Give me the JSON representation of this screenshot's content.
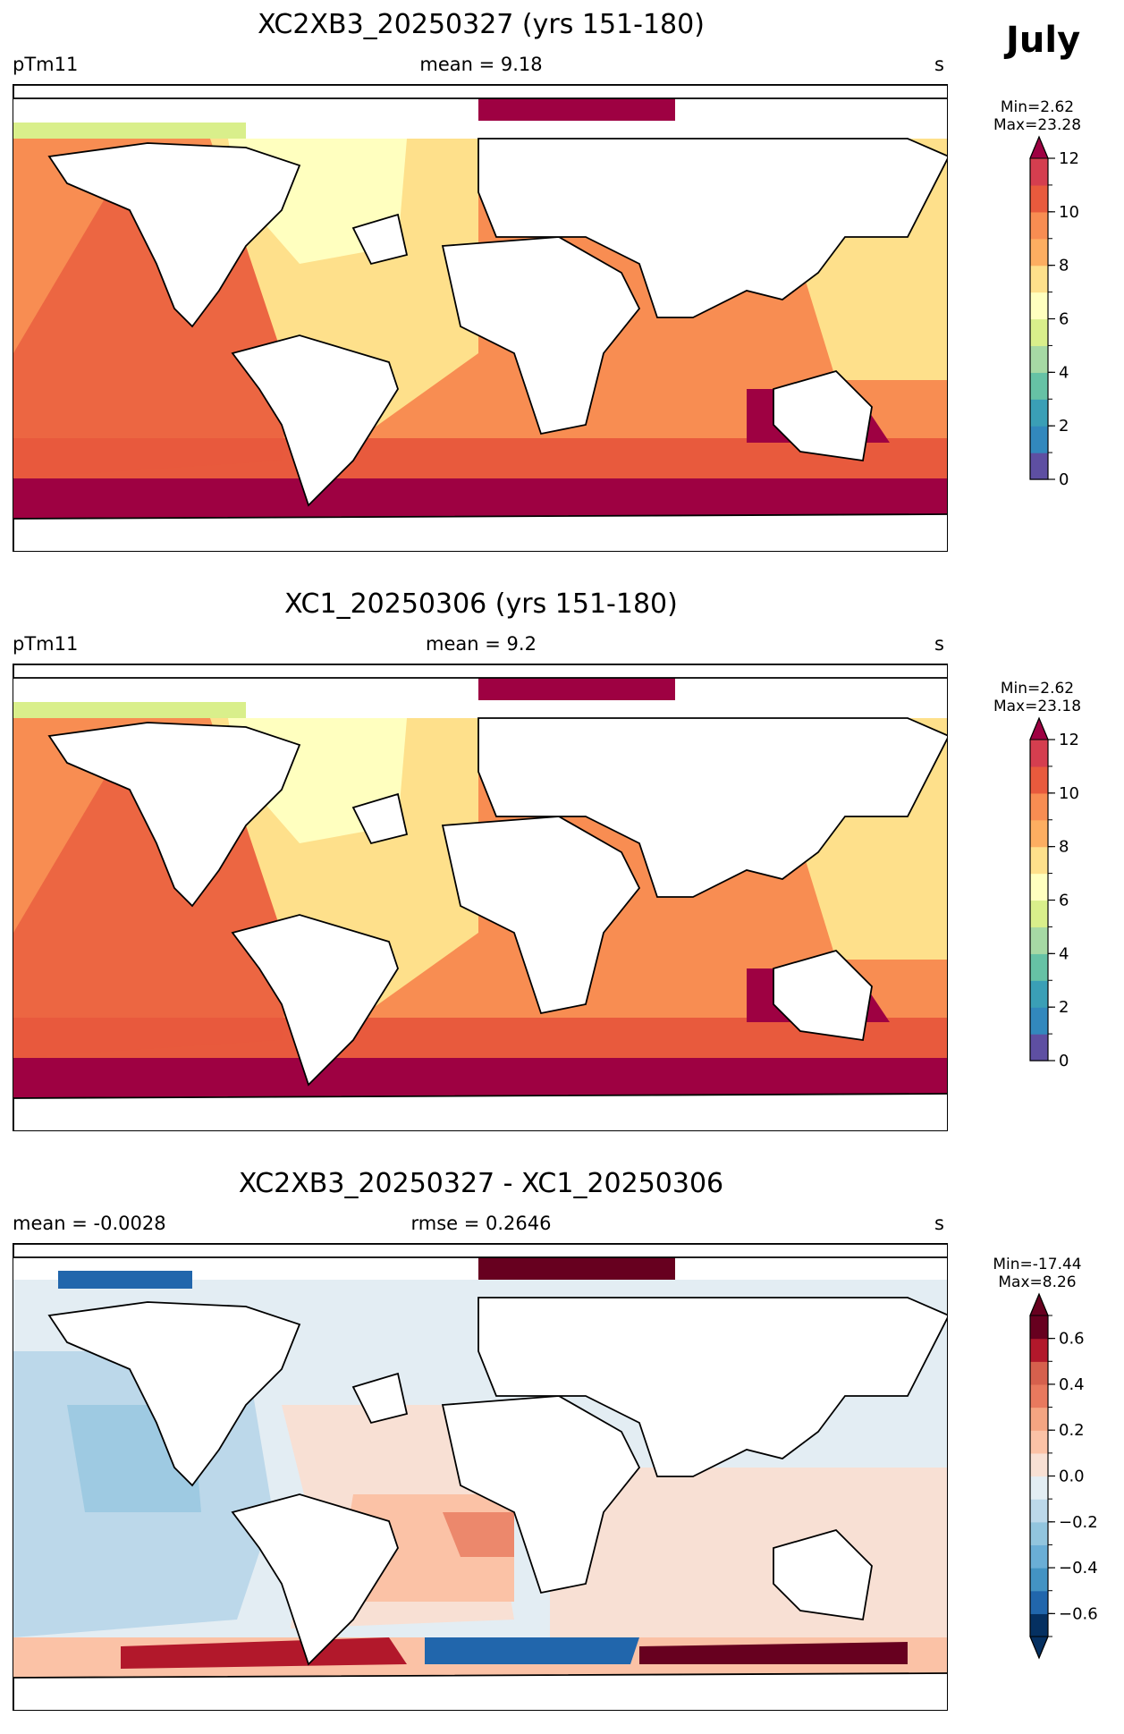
{
  "figure": {
    "month": "July"
  },
  "panels": [
    {
      "title": "XC2XB3_20250327 (yrs 151-180)",
      "left_label": "pTm11",
      "center_label": "mean = 9.18",
      "right_label": "s",
      "cb_min": "Min=2.62",
      "cb_max": "Max=23.28",
      "colorbar": {
        "ticks": [
          "0",
          "2",
          "4",
          "6",
          "8",
          "10",
          "12"
        ],
        "tick_values": [
          0,
          2,
          4,
          6,
          8,
          10,
          12
        ],
        "levels": [
          0,
          1,
          2,
          3,
          4,
          5,
          6,
          7,
          8,
          9,
          10,
          11,
          12
        ],
        "colors": [
          "#5e4fa2",
          "#3288bd",
          "#3a9fb6",
          "#66c2a5",
          "#a6d9a4",
          "#d9ef8b",
          "#ffffbf",
          "#fee08b",
          "#fdae61",
          "#f88d52",
          "#e85a3d",
          "#d53e4f",
          "#9e0142"
        ],
        "extend": "max"
      }
    },
    {
      "title": "XC1_20250306 (yrs 151-180)",
      "left_label": "pTm11",
      "center_label": "mean = 9.2",
      "right_label": "s",
      "cb_min": "Min=2.62",
      "cb_max": "Max=23.18",
      "colorbar": {
        "ticks": [
          "0",
          "2",
          "4",
          "6",
          "8",
          "10",
          "12"
        ],
        "tick_values": [
          0,
          2,
          4,
          6,
          8,
          10,
          12
        ],
        "levels": [
          0,
          1,
          2,
          3,
          4,
          5,
          6,
          7,
          8,
          9,
          10,
          11,
          12
        ],
        "colors": [
          "#5e4fa2",
          "#3288bd",
          "#3a9fb6",
          "#66c2a5",
          "#a6d9a4",
          "#d9ef8b",
          "#ffffbf",
          "#fee08b",
          "#fdae61",
          "#f88d52",
          "#e85a3d",
          "#d53e4f",
          "#9e0142"
        ],
        "extend": "max"
      }
    },
    {
      "title": "XC2XB3_20250327 - XC1_20250306",
      "left_label": "mean = -0.0028",
      "center_label": "rmse = 0.2646",
      "right_label": "s",
      "cb_min": "Min=-17.44",
      "cb_max": "Max=8.26",
      "colorbar": {
        "ticks": [
          "0.6",
          "0.4",
          "0.2",
          "0.0",
          "−0.2",
          "−0.4",
          "−0.6"
        ],
        "tick_values": [
          0.6,
          0.4,
          0.2,
          0.0,
          -0.2,
          -0.4,
          -0.6
        ],
        "levels": [
          -0.7,
          -0.6,
          -0.5,
          -0.4,
          -0.3,
          -0.2,
          -0.1,
          0.0,
          0.1,
          0.2,
          0.3,
          0.4,
          0.5,
          0.6,
          0.7
        ],
        "colors": [
          "#053061",
          "#2166ac",
          "#4393c3",
          "#6aaed6",
          "#92c5de",
          "#bcd8ea",
          "#e3edf3",
          "#f8e0d4",
          "#fbc2a6",
          "#f4a582",
          "#e8795e",
          "#d6604d",
          "#b2182b",
          "#67001f"
        ],
        "extend": "both"
      }
    }
  ],
  "chart_data": [
    {
      "type": "heatmap",
      "title": "XC2XB3_20250327 (yrs 151-180)",
      "variable": "pTm11",
      "units": "s",
      "mean": 9.18,
      "min": 2.62,
      "max": 23.28,
      "colorbar_range": [
        0,
        12
      ]
    },
    {
      "type": "heatmap",
      "title": "XC1_20250306 (yrs 151-180)",
      "variable": "pTm11",
      "units": "s",
      "mean": 9.2,
      "min": 2.62,
      "max": 23.18,
      "colorbar_range": [
        0,
        12
      ]
    },
    {
      "type": "heatmap",
      "title": "XC2XB3_20250327 - XC1_20250306",
      "units": "s",
      "mean": -0.0028,
      "rmse": 0.2646,
      "min": -17.44,
      "max": 8.26,
      "colorbar_range": [
        -0.7,
        0.7
      ]
    }
  ]
}
